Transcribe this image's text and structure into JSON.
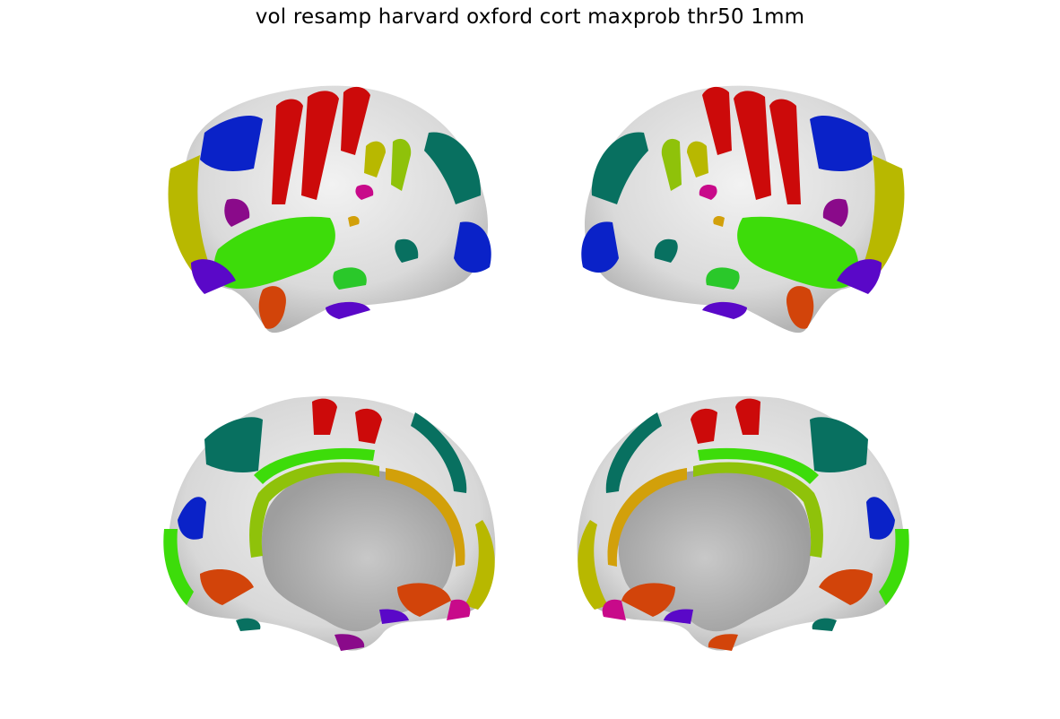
{
  "figure": {
    "title": "vol resamp harvard oxford cort maxprob thr50 1mm"
  },
  "colors": {
    "surface": "#e4e4e4",
    "surface_shadow": "#bdbdbd",
    "medial_wall": "#a9a9a9",
    "red": "#cc0a0a",
    "green": "#3ddc0a",
    "yellow_green": "#8fc20a",
    "olive": "#b8b800",
    "teal": "#087060",
    "blue": "#0a22c8",
    "purple": "#5a08c8",
    "magenta": "#c80a8a",
    "dark_magenta": "#8a0a8a",
    "orange_red": "#d2440a",
    "gold": "#d2a00a",
    "lime": "#2ac82a"
  },
  "views": [
    {
      "name": "left-hemisphere-lateral-view"
    },
    {
      "name": "right-hemisphere-lateral-view"
    },
    {
      "name": "left-hemisphere-medial-view"
    },
    {
      "name": "right-hemisphere-medial-view"
    }
  ]
}
